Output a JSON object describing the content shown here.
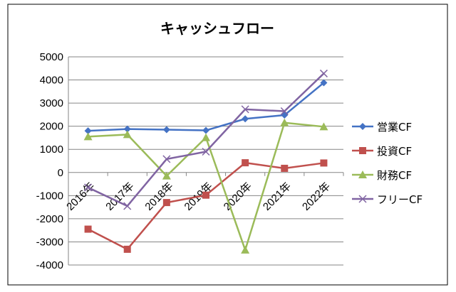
{
  "chart_data": {
    "type": "line",
    "title": "キャッシュフロー",
    "categories": [
      "2016年",
      "2017年",
      "2018年",
      "2019年",
      "2020年",
      "2021年",
      "2022年"
    ],
    "ylim": [
      -4000,
      5000
    ],
    "yticks": [
      5000,
      4000,
      3000,
      2000,
      1000,
      0,
      -1000,
      -2000,
      -3000,
      -4000
    ],
    "grid": true,
    "legend": "right",
    "series": [
      {
        "name": "営業CF",
        "color": "#4472C4",
        "marker": "diamond",
        "values": [
          1800,
          1880,
          1850,
          1820,
          2320,
          2480,
          3880
        ]
      },
      {
        "name": "投資CF",
        "color": "#C0504D",
        "marker": "square",
        "values": [
          -2450,
          -3320,
          -1300,
          -980,
          420,
          180,
          410
        ]
      },
      {
        "name": "財務CF",
        "color": "#9BBB59",
        "marker": "triangle",
        "values": [
          1550,
          1640,
          -150,
          1510,
          -3350,
          2150,
          1980
        ]
      },
      {
        "name": "フリーCF",
        "color": "#8064A2",
        "marker": "x",
        "values": [
          -650,
          -1450,
          580,
          900,
          2730,
          2650,
          4280
        ]
      }
    ]
  }
}
